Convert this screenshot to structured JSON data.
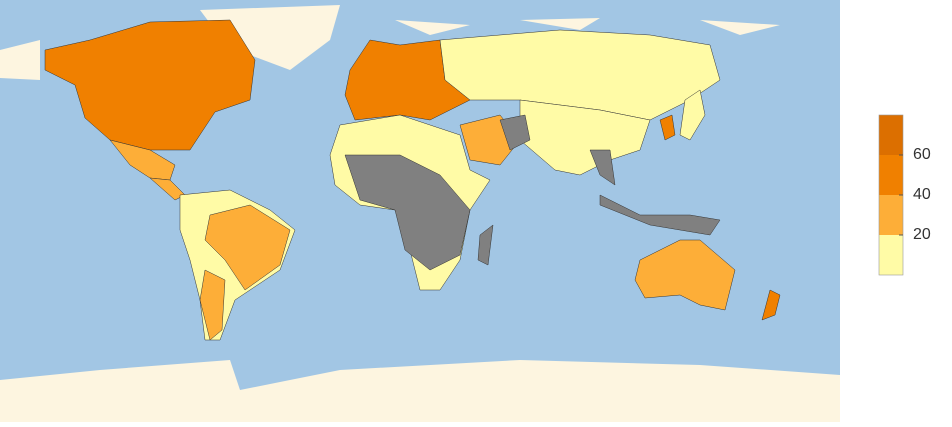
{
  "legend": {
    "lim": [
      0,
      80
    ],
    "bins": [
      0,
      20,
      40,
      60,
      80
    ],
    "colors": [
      "#fffba6",
      "#fdae38",
      "#f08000",
      "#dc6f00"
    ],
    "ticks": [
      20,
      40,
      60
    ]
  }
}
